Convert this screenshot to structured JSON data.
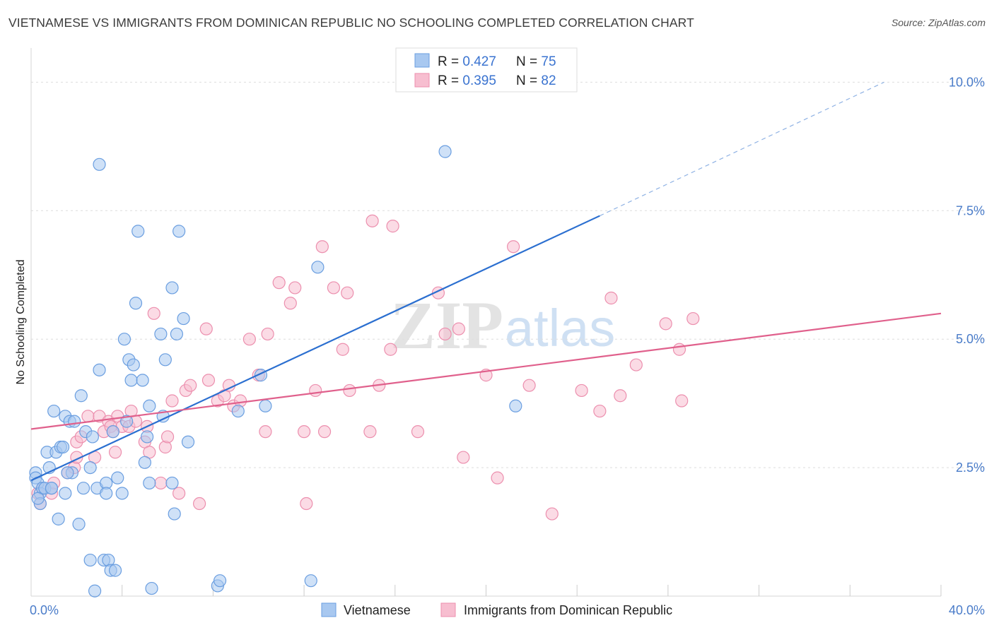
{
  "header": {
    "title": "VIETNAMESE VS IMMIGRANTS FROM DOMINICAN REPUBLIC NO SCHOOLING COMPLETED CORRELATION CHART",
    "source": "Source: ZipAtlas.com"
  },
  "watermark": {
    "zip": "ZIP",
    "atlas": "atlas"
  },
  "colors": {
    "blue_fill": "#a8c8f0",
    "blue_stroke": "#6a9ee0",
    "blue_line": "#2b6fd0",
    "pink_fill": "#f7bed0",
    "pink_stroke": "#ec8fae",
    "pink_line": "#e0608c",
    "grid": "#dddddd",
    "tick_label": "#4a7cc9"
  },
  "legend": {
    "items": [
      {
        "r_label": "R = ",
        "r_value": "0.427",
        "n_label": "N = ",
        "n_value": "75"
      },
      {
        "r_label": "R = ",
        "r_value": "0.395",
        "n_label": "N = ",
        "n_value": "82"
      }
    ]
  },
  "chart_data": {
    "type": "scatter",
    "title": "VIETNAMESE VS IMMIGRANTS FROM DOMINICAN REPUBLIC NO SCHOOLING COMPLETED CORRELATION CHART",
    "xlabel": "",
    "ylabel": "No Schooling Completed",
    "xlim": [
      0,
      40
    ],
    "ylim": [
      0,
      10.5
    ],
    "x_tick_labels": [
      "0.0%",
      "40.0%"
    ],
    "y_ticks": [
      2.5,
      5.0,
      7.5,
      10.0
    ],
    "y_tick_labels": [
      "2.5%",
      "5.0%",
      "7.5%",
      "10.0%"
    ],
    "grid": true,
    "legend_position": "top-center",
    "series": [
      {
        "name": "Vietnamese",
        "color": "#6a9ee0",
        "trend": {
          "x0": 0,
          "y0": 2.25,
          "x1": 25,
          "y1": 7.4,
          "dash_x1": 37.5,
          "dash_y1": 10.0
        },
        "points": [
          [
            0.2,
            2.4
          ],
          [
            0.2,
            2.3
          ],
          [
            0.3,
            2.2
          ],
          [
            0.4,
            2.0
          ],
          [
            0.4,
            1.8
          ],
          [
            0.5,
            2.1
          ],
          [
            0.6,
            2.1
          ],
          [
            0.7,
            2.8
          ],
          [
            0.8,
            2.5
          ],
          [
            0.9,
            2.1
          ],
          [
            1.0,
            3.6
          ],
          [
            1.1,
            2.8
          ],
          [
            1.2,
            1.5
          ],
          [
            1.3,
            2.9
          ],
          [
            1.4,
            2.9
          ],
          [
            1.5,
            3.5
          ],
          [
            1.5,
            2.0
          ],
          [
            1.7,
            3.4
          ],
          [
            1.8,
            2.4
          ],
          [
            1.9,
            3.4
          ],
          [
            2.1,
            1.4
          ],
          [
            2.2,
            3.9
          ],
          [
            2.3,
            2.1
          ],
          [
            2.4,
            3.2
          ],
          [
            2.6,
            0.7
          ],
          [
            2.6,
            2.5
          ],
          [
            2.7,
            3.1
          ],
          [
            2.8,
            0.1
          ],
          [
            2.9,
            2.1
          ],
          [
            3.0,
            4.4
          ],
          [
            3.0,
            8.4
          ],
          [
            3.2,
            0.7
          ],
          [
            3.3,
            2.2
          ],
          [
            3.3,
            2.0
          ],
          [
            3.4,
            0.7
          ],
          [
            3.5,
            0.5
          ],
          [
            3.6,
            3.2
          ],
          [
            3.7,
            0.5
          ],
          [
            3.8,
            2.3
          ],
          [
            4.0,
            2.0
          ],
          [
            4.1,
            5.0
          ],
          [
            4.2,
            3.4
          ],
          [
            4.3,
            4.6
          ],
          [
            4.4,
            4.2
          ],
          [
            4.5,
            4.5
          ],
          [
            4.6,
            5.7
          ],
          [
            4.7,
            7.1
          ],
          [
            4.9,
            4.2
          ],
          [
            5.0,
            2.6
          ],
          [
            5.1,
            3.1
          ],
          [
            5.2,
            3.7
          ],
          [
            5.2,
            2.2
          ],
          [
            5.3,
            0.15
          ],
          [
            5.7,
            5.1
          ],
          [
            5.8,
            3.5
          ],
          [
            5.9,
            4.6
          ],
          [
            6.2,
            2.2
          ],
          [
            6.2,
            6.0
          ],
          [
            6.3,
            1.6
          ],
          [
            6.4,
            5.1
          ],
          [
            6.5,
            7.1
          ],
          [
            6.7,
            5.4
          ],
          [
            6.9,
            3.0
          ],
          [
            8.2,
            0.2
          ],
          [
            8.3,
            0.3
          ],
          [
            9.1,
            3.6
          ],
          [
            10.1,
            4.3
          ],
          [
            10.3,
            3.7
          ],
          [
            12.3,
            0.3
          ],
          [
            12.6,
            6.4
          ],
          [
            18.2,
            8.65
          ],
          [
            21.3,
            3.7
          ],
          [
            0.3,
            1.9
          ],
          [
            1.6,
            2.4
          ],
          [
            0.9,
            2.1
          ]
        ]
      },
      {
        "name": "Immigrants from Dominican Republic",
        "color": "#ec8fae",
        "trend": {
          "x0": 0,
          "y0": 3.25,
          "x1": 40,
          "y1": 5.5
        },
        "points": [
          [
            0.3,
            2.0
          ],
          [
            0.4,
            1.8
          ],
          [
            0.5,
            2.1
          ],
          [
            0.9,
            2.0
          ],
          [
            1.0,
            2.2
          ],
          [
            1.6,
            2.4
          ],
          [
            1.9,
            2.5
          ],
          [
            2.0,
            2.7
          ],
          [
            2.0,
            3.0
          ],
          [
            2.2,
            3.1
          ],
          [
            2.5,
            3.5
          ],
          [
            2.8,
            2.7
          ],
          [
            3.0,
            3.5
          ],
          [
            3.2,
            3.2
          ],
          [
            3.4,
            3.4
          ],
          [
            3.5,
            3.3
          ],
          [
            3.6,
            3.2
          ],
          [
            3.7,
            2.8
          ],
          [
            3.8,
            3.5
          ],
          [
            4.0,
            3.3
          ],
          [
            4.3,
            3.3
          ],
          [
            4.4,
            3.6
          ],
          [
            4.6,
            3.4
          ],
          [
            5.0,
            3.0
          ],
          [
            5.1,
            3.3
          ],
          [
            5.2,
            2.8
          ],
          [
            5.4,
            5.5
          ],
          [
            5.7,
            2.2
          ],
          [
            5.9,
            2.9
          ],
          [
            6.0,
            3.1
          ],
          [
            6.2,
            3.8
          ],
          [
            6.5,
            2.0
          ],
          [
            6.8,
            4.0
          ],
          [
            7.0,
            4.1
          ],
          [
            7.4,
            1.8
          ],
          [
            7.7,
            5.2
          ],
          [
            7.8,
            4.2
          ],
          [
            8.2,
            3.8
          ],
          [
            8.5,
            3.9
          ],
          [
            8.7,
            4.1
          ],
          [
            8.9,
            3.7
          ],
          [
            9.2,
            3.8
          ],
          [
            9.6,
            5.0
          ],
          [
            10.0,
            4.3
          ],
          [
            10.3,
            3.2
          ],
          [
            10.4,
            5.1
          ],
          [
            10.9,
            6.1
          ],
          [
            11.4,
            5.7
          ],
          [
            11.6,
            6.0
          ],
          [
            12.0,
            3.2
          ],
          [
            12.1,
            1.8
          ],
          [
            12.5,
            4.0
          ],
          [
            12.8,
            6.8
          ],
          [
            12.9,
            3.2
          ],
          [
            13.3,
            6.0
          ],
          [
            13.7,
            4.8
          ],
          [
            13.9,
            5.9
          ],
          [
            14.0,
            4.0
          ],
          [
            14.9,
            3.2
          ],
          [
            15.0,
            7.3
          ],
          [
            15.3,
            4.1
          ],
          [
            15.8,
            4.8
          ],
          [
            15.9,
            7.2
          ],
          [
            17.0,
            3.2
          ],
          [
            17.9,
            5.9
          ],
          [
            18.2,
            5.1
          ],
          [
            18.8,
            5.2
          ],
          [
            19.0,
            2.7
          ],
          [
            20.0,
            4.3
          ],
          [
            20.5,
            2.3
          ],
          [
            21.2,
            6.8
          ],
          [
            21.9,
            4.1
          ],
          [
            22.9,
            1.6
          ],
          [
            24.2,
            4.0
          ],
          [
            25.0,
            3.6
          ],
          [
            25.5,
            5.8
          ],
          [
            25.9,
            3.9
          ],
          [
            26.6,
            4.5
          ],
          [
            27.9,
            5.3
          ],
          [
            28.5,
            4.8
          ],
          [
            28.6,
            3.8
          ],
          [
            29.1,
            5.4
          ]
        ]
      }
    ]
  },
  "bottom_legend": {
    "items": [
      "Vietnamese",
      "Immigrants from Dominican Republic"
    ]
  }
}
